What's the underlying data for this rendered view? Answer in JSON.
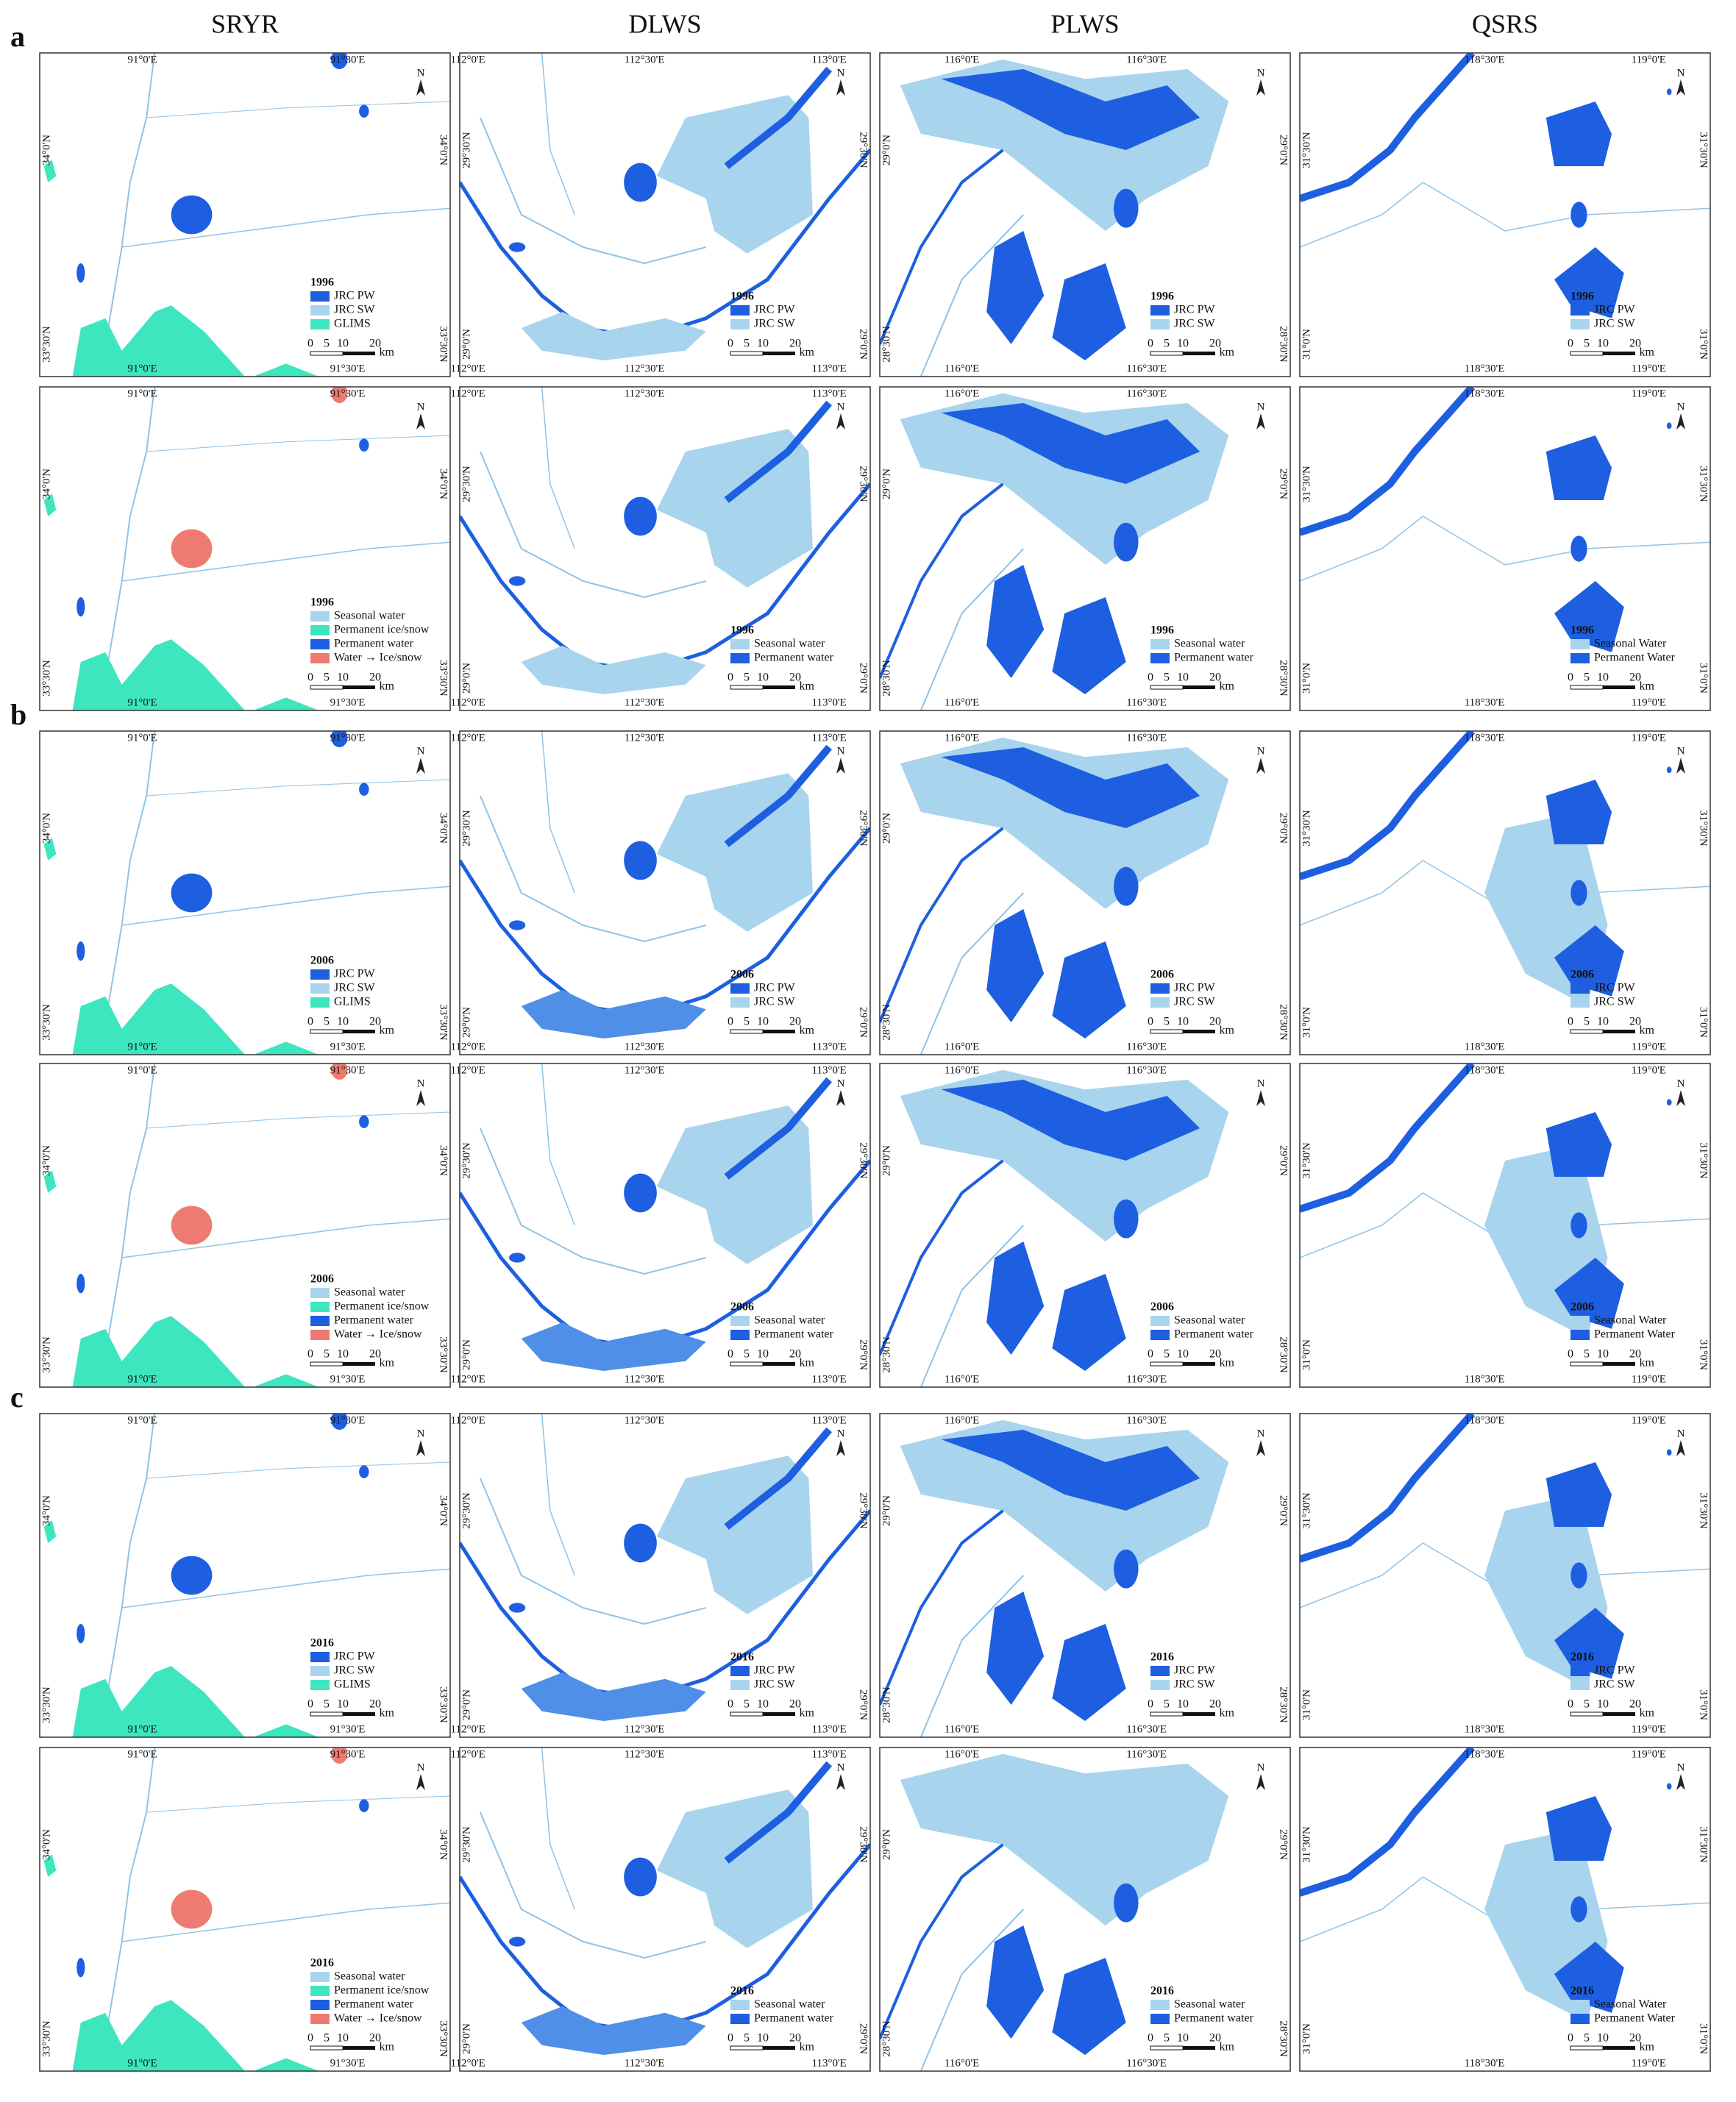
{
  "figure": {
    "columns": [
      {
        "title": "SRYR",
        "lon": [
          "91°0'E",
          "91°30'E"
        ],
        "lat": [
          "34°0'N",
          "33°30'N"
        ],
        "legend_jrc": [
          "JRC PW",
          "JRC SW",
          "GLIMS"
        ],
        "legend_class": [
          "Seasonal water",
          "Permanent ice/snow",
          "Permanent water",
          "Water → Ice/snow"
        ]
      },
      {
        "title": "DLWS",
        "lon": [
          "112°0'E",
          "112°30'E",
          "113°0'E"
        ],
        "lat": [
          "29°30'N",
          "29°0'N"
        ],
        "legend_jrc": [
          "JRC PW",
          "JRC SW"
        ],
        "legend_class": [
          "Seasonal water",
          "Permanent water"
        ]
      },
      {
        "title": "PLWS",
        "lon": [
          "116°0'E",
          "116°30'E"
        ],
        "lat": [
          "29°0'N",
          "28°30'N"
        ],
        "legend_jrc": [
          "JRC PW",
          "JRC SW"
        ],
        "legend_class": [
          "Seasonal water",
          "Permanent water"
        ]
      },
      {
        "title": "QSRS",
        "lon": [
          "118°30'E",
          "119°0'E"
        ],
        "lat": [
          "31°30'N",
          "31°0'N"
        ],
        "legend_jrc": [
          "JRC PW",
          "JRC SW"
        ],
        "legend_class": [
          "Seasonal Water",
          "Permanent Water"
        ]
      }
    ],
    "groups": [
      {
        "label": "a",
        "year": "1996"
      },
      {
        "label": "b",
        "year": "2006"
      },
      {
        "label": "c",
        "year": "2016"
      }
    ],
    "scale": {
      "ticks": [
        "0",
        "5",
        "10",
        "20"
      ],
      "unit": "km"
    },
    "north": "N"
  }
}
